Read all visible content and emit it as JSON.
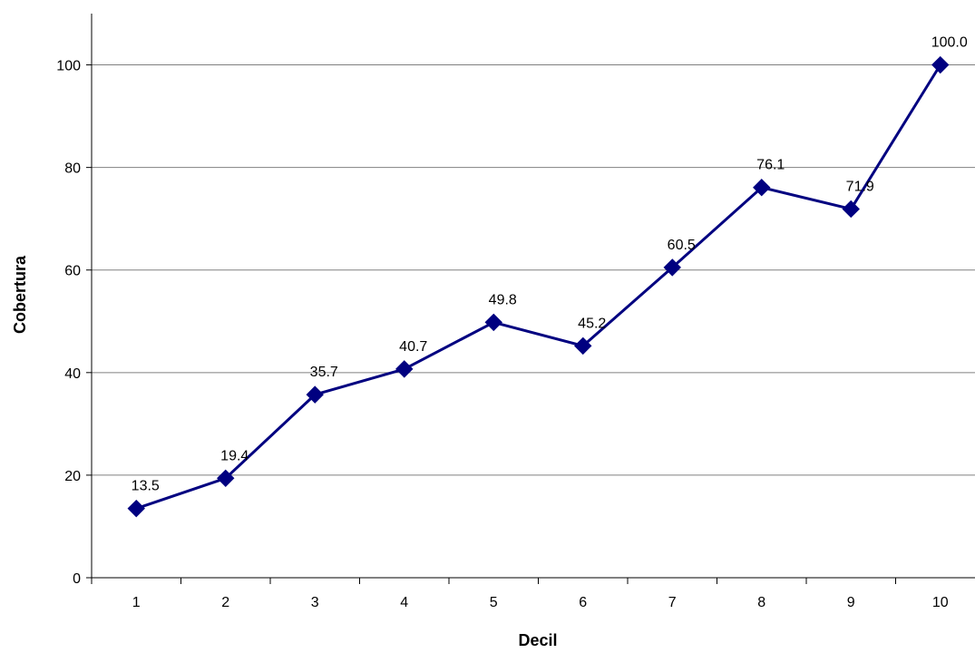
{
  "chart_data": {
    "type": "line",
    "xlabel": "Decil",
    "ylabel": "Cobertura",
    "categories": [
      "1",
      "2",
      "3",
      "4",
      "5",
      "6",
      "7",
      "8",
      "9",
      "10"
    ],
    "series": [
      {
        "values": [
          13.5,
          19.4,
          35.7,
          40.7,
          49.8,
          45.2,
          60.5,
          76.1,
          71.9,
          100.0
        ],
        "labels": [
          "13.5",
          "19.4",
          "35.7",
          "40.7",
          "49.8",
          "45.2",
          "60.5",
          "76.1",
          "71.9",
          "100.0"
        ]
      }
    ],
    "ylim": [
      0,
      110
    ],
    "yticks": [
      0,
      20,
      40,
      60,
      80,
      100
    ],
    "ytick_labels": [
      "0",
      "20",
      "40",
      "60",
      "80",
      "100"
    ],
    "grid": true,
    "legend": "none",
    "marker": "diamond",
    "colors": {
      "line": "#000080",
      "grid": "#808080",
      "axis": "#000000"
    }
  }
}
